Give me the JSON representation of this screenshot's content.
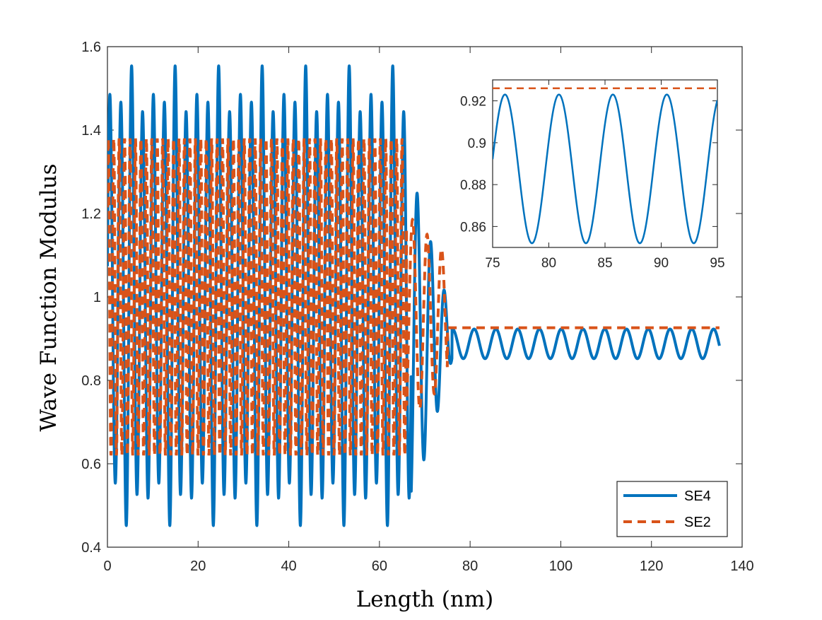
{
  "colors": {
    "se4": "#0072BD",
    "se2": "#D95319",
    "axis": "#262626"
  },
  "chart_data": [
    {
      "type": "line",
      "title": "",
      "xlabel": "Length (nm)",
      "ylabel": "Wave Function Modulus",
      "xlim": [
        0,
        140
      ],
      "ylim": [
        0.4,
        1.6
      ],
      "xticks": [
        0,
        20,
        40,
        60,
        80,
        100,
        120,
        140
      ],
      "yticks": [
        0.4,
        0.6,
        0.8,
        1,
        1.2,
        1.4,
        1.6
      ],
      "grid": false,
      "legend": {
        "placement": "bottom-right",
        "entries": [
          "SE4",
          "SE2"
        ]
      },
      "series": [
        {
          "name": "SE4",
          "style": "solid",
          "x_range": [
            0,
            135
          ],
          "description_values": {
            "region_1_x": [
              0,
              67
            ],
            "region_1_min": 0.47,
            "region_1_max": 1.53,
            "period_region_1_nm": 2.4,
            "transition_x": [
              67,
              76
            ],
            "transition_peaks": [
              1.11,
              1.16
            ],
            "region_2_x": [
              76,
              135
            ],
            "region_2_min": 0.852,
            "region_2_max": 0.923,
            "period_region_2_nm": 4.8
          }
        },
        {
          "name": "SE2",
          "style": "dashed",
          "x_range": [
            0,
            135
          ],
          "description_values": {
            "region_1_x": [
              0,
              66
            ],
            "region_1_min": 0.62,
            "region_1_max": 1.38,
            "period_region_1_nm": 1.2,
            "transition_x": [
              66,
              75
            ],
            "transition_peaks": [
              1.18,
              1.2
            ],
            "region_2_x": [
              75,
              135
            ],
            "region_2_value": 0.926
          }
        }
      ]
    },
    {
      "type": "line",
      "title": "",
      "xlim": [
        75,
        95
      ],
      "ylim": [
        0.85,
        0.93
      ],
      "xticks": [
        75,
        80,
        85,
        90,
        95
      ],
      "yticks": [
        0.86,
        0.88,
        0.9,
        0.92
      ],
      "grid": false,
      "series": [
        {
          "name": "SE4",
          "style": "solid",
          "x_range": [
            75,
            95
          ],
          "min": 0.852,
          "max": 0.923,
          "period_nm": 4.8,
          "peaks_x": [
            76.1,
            80.9,
            85.7,
            90.5
          ]
        },
        {
          "name": "SE2",
          "style": "dashed",
          "x_range": [
            75,
            95
          ],
          "value": 0.926
        }
      ]
    }
  ]
}
